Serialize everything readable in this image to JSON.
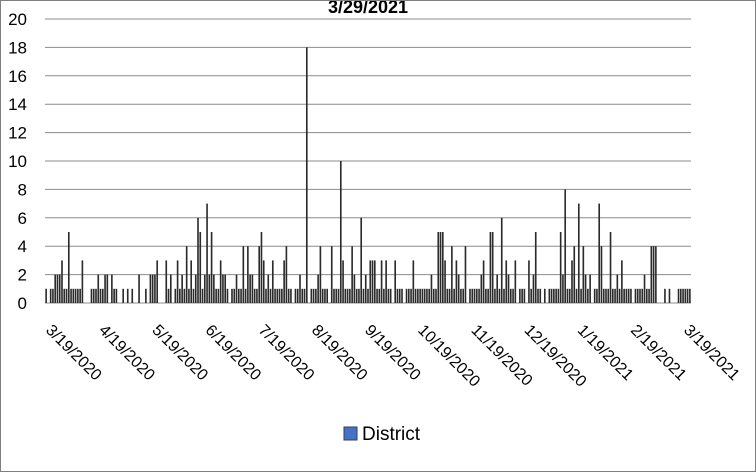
{
  "chart_data": {
    "type": "bar",
    "title": "3/29/2021",
    "ylabel": "",
    "xlabel": "",
    "ylim": [
      0,
      20
    ],
    "yticks": [
      "0",
      "2",
      "4",
      "6",
      "8",
      "10",
      "12",
      "14",
      "16",
      "18",
      "20"
    ],
    "x_tick_labels": [
      "3/19/2020",
      "4/19/2020",
      "5/19/2020",
      "6/19/2020",
      "7/19/2020",
      "8/19/2020",
      "9/19/2020",
      "10/19/2020",
      "11/19/2020",
      "12/19/2020",
      "1/19/2021",
      "2/19/2021",
      "3/19/2021"
    ],
    "grid": true,
    "legend_position": "bottom",
    "colors": {
      "bar": "#2b2b2b",
      "grid": "#8c8c8c",
      "legend_swatch": "#4472c4"
    },
    "series": [
      {
        "name": "District",
        "values": [
          1,
          0,
          1,
          1,
          2,
          2,
          2,
          3,
          1,
          1,
          5,
          1,
          1,
          1,
          1,
          1,
          3,
          0,
          0,
          0,
          1,
          1,
          1,
          2,
          1,
          1,
          2,
          2,
          0,
          2,
          1,
          1,
          0,
          0,
          1,
          0,
          1,
          0,
          1,
          0,
          0,
          2,
          0,
          0,
          1,
          0,
          2,
          2,
          2,
          3,
          0,
          0,
          0,
          3,
          1,
          2,
          0,
          1,
          3,
          1,
          2,
          1,
          4,
          1,
          3,
          1,
          2,
          6,
          5,
          1,
          2,
          7,
          2,
          5,
          2,
          1,
          1,
          3,
          2,
          2,
          1,
          0,
          1,
          1,
          2,
          1,
          1,
          4,
          1,
          4,
          2,
          2,
          1,
          1,
          4,
          5,
          3,
          1,
          2,
          1,
          3,
          1,
          1,
          1,
          1,
          3,
          4,
          1,
          1,
          0,
          1,
          1,
          2,
          1,
          1,
          18,
          0,
          1,
          1,
          1,
          2,
          4,
          1,
          1,
          1,
          0,
          4,
          1,
          1,
          1,
          10,
          3,
          1,
          1,
          1,
          4,
          2,
          1,
          1,
          6,
          1,
          2,
          1,
          3,
          3,
          3,
          1,
          1,
          3,
          1,
          3,
          1,
          1,
          0,
          3,
          1,
          1,
          1,
          0,
          1,
          1,
          1,
          3,
          1,
          1,
          1,
          1,
          1,
          1,
          1,
          2,
          1,
          1,
          5,
          5,
          5,
          3,
          1,
          1,
          4,
          1,
          3,
          2,
          1,
          1,
          4,
          0,
          1,
          1,
          1,
          1,
          1,
          2,
          3,
          1,
          1,
          5,
          5,
          1,
          2,
          1,
          6,
          1,
          3,
          2,
          1,
          1,
          3,
          0,
          1,
          1,
          1,
          0,
          3,
          1,
          2,
          5,
          1,
          1,
          0,
          1,
          0,
          1,
          1,
          1,
          1,
          1,
          5,
          2,
          8,
          1,
          1,
          3,
          4,
          1,
          7,
          1,
          4,
          2,
          1,
          2,
          0,
          1,
          1,
          7,
          4,
          1,
          1,
          1,
          5,
          1,
          1,
          2,
          1,
          3,
          1,
          1,
          1,
          1,
          0,
          1,
          1,
          1,
          1,
          2,
          1,
          1,
          4,
          4,
          4,
          0,
          0,
          0,
          1,
          0,
          1,
          0,
          0,
          0,
          1,
          1,
          1,
          1,
          1,
          1
        ]
      }
    ]
  }
}
